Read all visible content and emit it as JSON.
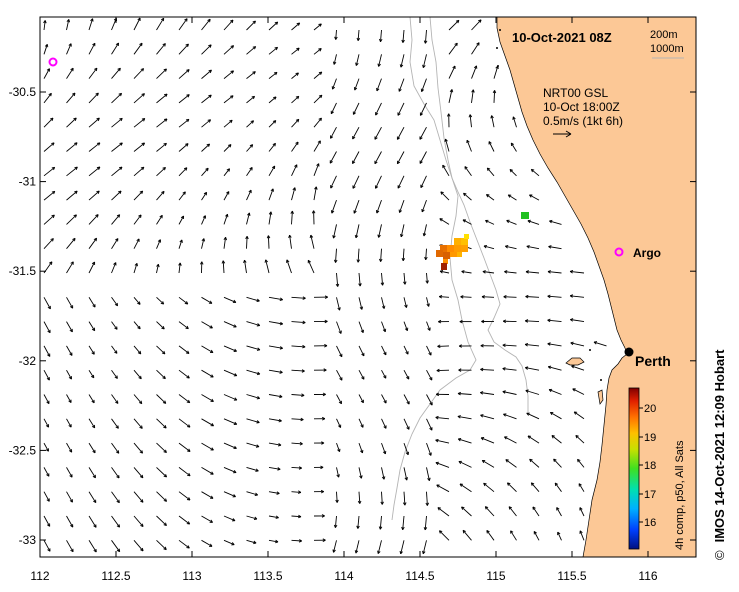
{
  "map": {
    "title": "10-Oct-2021 08Z",
    "contour_labels": [
      "200m",
      "1000m"
    ],
    "current_info": [
      "NRT00 GSL",
      "10-Oct 18:00Z",
      "0.5m/s (1kt 6h)"
    ],
    "x_ticks": [
      "112",
      "112.5",
      "113",
      "113.5",
      "114",
      "114.5",
      "115",
      "115.5",
      "116"
    ],
    "y_ticks": [
      "-30.5",
      "-31",
      "-31.5",
      "-32",
      "-32.5",
      "-33"
    ],
    "places": [
      {
        "name": "Argo",
        "kind": "argo"
      },
      {
        "name": "Perth",
        "kind": "city"
      }
    ],
    "colorbar": {
      "ticks": [
        "20",
        "19",
        "18",
        "17",
        "16"
      ],
      "label": "4h comp, p50, All Sats"
    },
    "credit_symbol": "©",
    "credit": "IMOS 14-Oct-2021 12:09 Hobart",
    "colors": {
      "land": "#fcc896",
      "sea": "#ffffff",
      "contour": "#b4b4b4",
      "argo": "#ff00ff",
      "arrow": "#000000"
    }
  }
}
